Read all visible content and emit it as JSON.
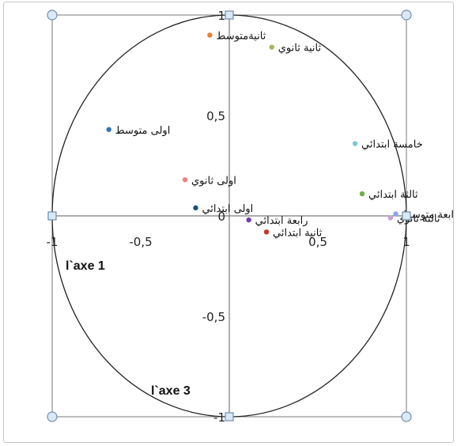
{
  "chart_data": {
    "type": "scatter",
    "title": "",
    "xlabel": "l`axe 1",
    "ylabel": "l`axe 3",
    "xlim": [
      -1,
      1
    ],
    "ylim": [
      -1,
      1
    ],
    "x_ticks": [
      "-1",
      "-0,5",
      "0",
      "0,5",
      "1"
    ],
    "y_ticks": [
      "-1",
      "-0,5",
      "0",
      "0,5",
      "1"
    ],
    "unit_circle": true,
    "grid": false,
    "legend": "none",
    "points": [
      {
        "label": "ثانيةمتوسط",
        "x": -0.11,
        "y": 0.9,
        "color": "#ed7d31"
      },
      {
        "label": "ثانية ثانوي",
        "x": 0.24,
        "y": 0.84,
        "color": "#a5b85a"
      },
      {
        "label": "اولى متوسط",
        "x": -0.68,
        "y": 0.43,
        "color": "#2e75b6"
      },
      {
        "label": "خامسة ابتدائي",
        "x": 0.71,
        "y": 0.36,
        "color": "#7fc7d8"
      },
      {
        "label": "اولى ثانوي",
        "x": -0.25,
        "y": 0.18,
        "color": "#f28080"
      },
      {
        "label": "اولى ابتدائي",
        "x": -0.19,
        "y": 0.04,
        "color": "#1f4e79"
      },
      {
        "label": "رابعة ابتدائي",
        "x": 0.11,
        "y": -0.02,
        "color": "#6f3fb0"
      },
      {
        "label": "ثانية ابتدائي",
        "x": 0.21,
        "y": -0.08,
        "color": "#c0392b"
      },
      {
        "label": "ثالثة ابتدائي",
        "x": 0.75,
        "y": 0.11,
        "color": "#70ad47"
      },
      {
        "label": "رابعة متوسط",
        "x": 0.94,
        "y": 0.01,
        "color": "#8fa6e6"
      },
      {
        "label": "ثالثة ثانوي",
        "x": 0.91,
        "y": -0.01,
        "color": "#c9a3d6"
      }
    ]
  }
}
